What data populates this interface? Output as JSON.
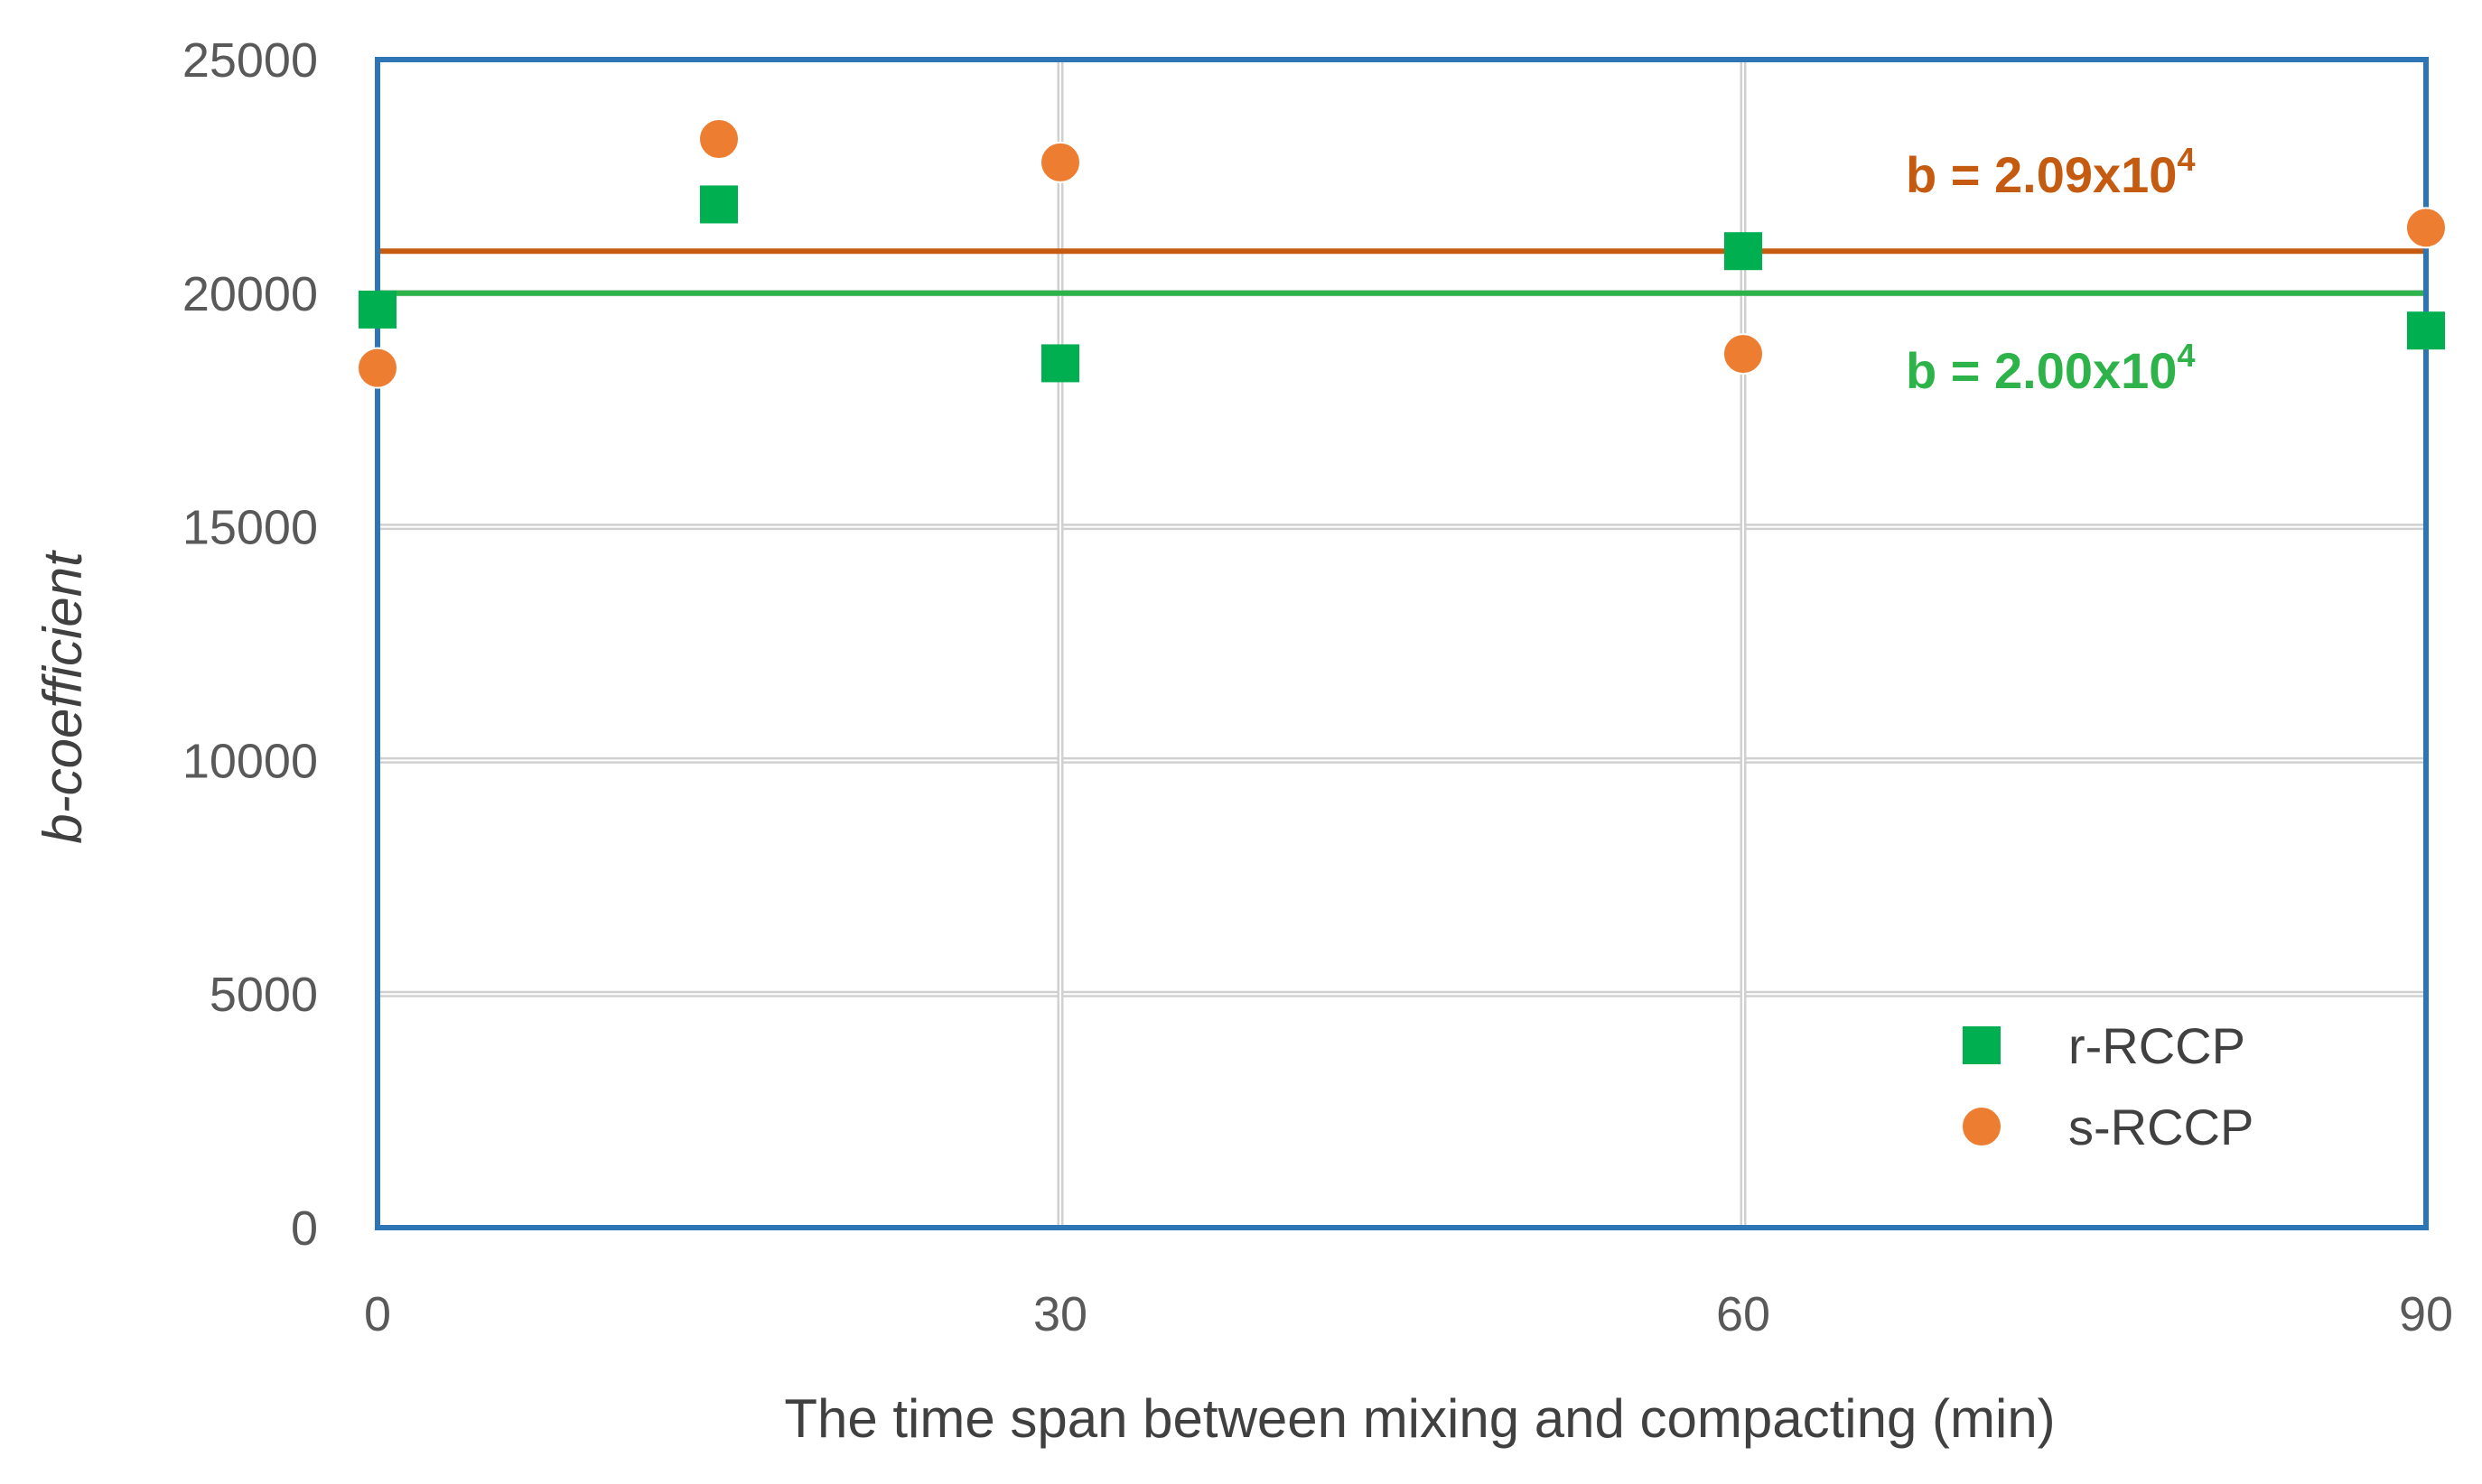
{
  "chart_data": {
    "type": "scatter",
    "title": "",
    "xlabel": "The time span between mixing and compacting (min)",
    "ylabel": "b-coefficient",
    "xlim": [
      0,
      90
    ],
    "ylim": [
      0,
      25000
    ],
    "xticks": [
      0,
      30,
      60,
      90
    ],
    "yticks": [
      0,
      5000,
      10000,
      15000,
      20000,
      25000
    ],
    "grid": true,
    "legend_position": "bottom-right",
    "series": [
      {
        "name": "r-RCCP",
        "marker": "square",
        "color": "#00B050",
        "x": [
          0,
          15,
          30,
          60,
          90
        ],
        "y": [
          19650,
          21900,
          18500,
          20900,
          19200
        ],
        "reference_line": {
          "value": 20000,
          "label_base": "b = 2.00x10",
          "label_exp": "4",
          "color": "#2DB34A"
        }
      },
      {
        "name": "s-RCCP",
        "marker": "circle",
        "color": "#ED7D31",
        "x": [
          0,
          15,
          30,
          60,
          90
        ],
        "y": [
          18400,
          23300,
          22800,
          18700,
          21400
        ],
        "reference_line": {
          "value": 20900,
          "label_base": "b = 2.09x10",
          "label_exp": "4",
          "color": "#C55A11"
        }
      }
    ]
  }
}
